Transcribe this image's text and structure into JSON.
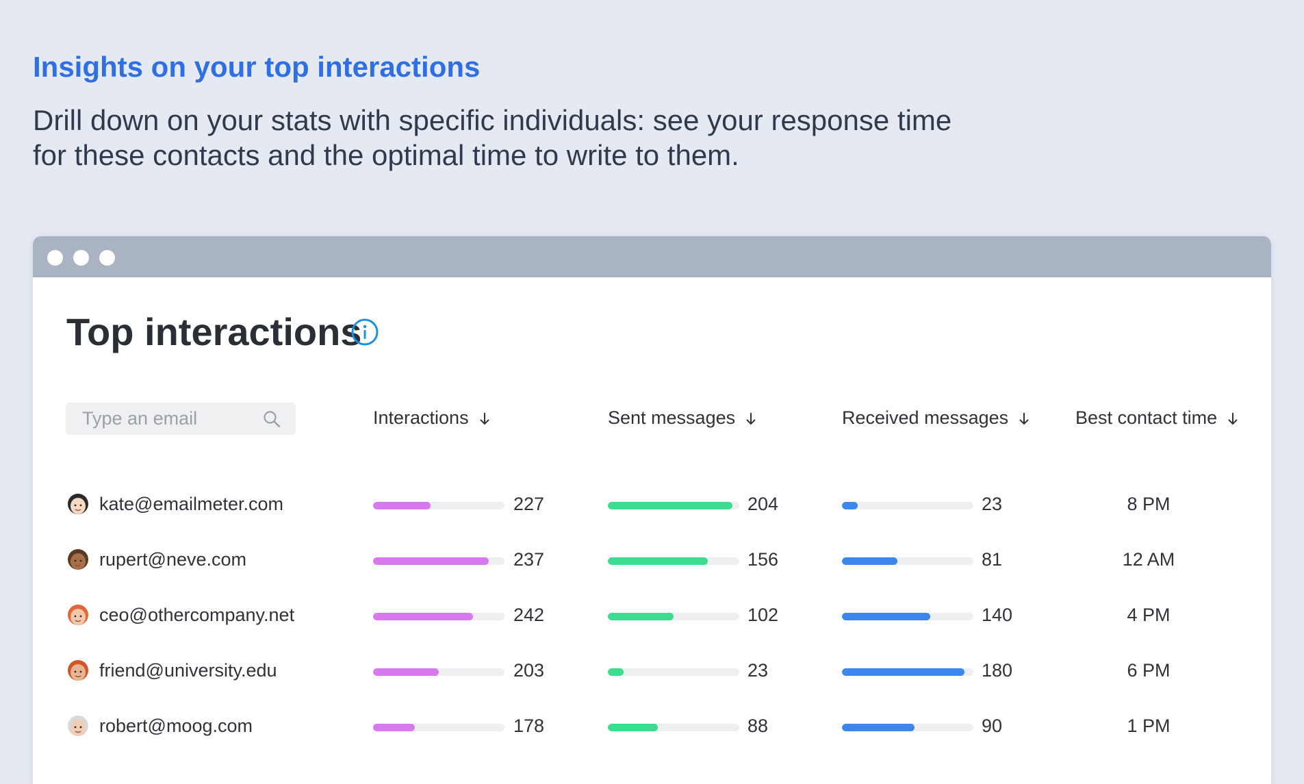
{
  "hero": {
    "title": "Insights on your top interactions",
    "subtitle": "Drill down on your stats with specific individuals: see your response time for these contacts and the optimal time to write to them."
  },
  "card": {
    "title": "Top interactions",
    "search_placeholder": "Type an email"
  },
  "columns": {
    "interactions": "Interactions",
    "sent": "Sent messages",
    "received": "Received messages",
    "best_time": "Best contact time"
  },
  "colors": {
    "interactions": "#d979f0",
    "sent": "#3ddc8e",
    "received": "#3d86ee",
    "accent": "#2f6fe3",
    "info": "#1a8fe3"
  },
  "rows": [
    {
      "email": "kate@emailmeter.com",
      "avatar": "woman-avatar-icon",
      "interactions": "227",
      "interactions_fill": 0.44,
      "sent": "204",
      "sent_fill": 0.95,
      "received": "23",
      "received_fill": 0.12,
      "best_time": "8 PM"
    },
    {
      "email": "rupert@neve.com",
      "avatar": "bearded-man-avatar-icon",
      "interactions": "237",
      "interactions_fill": 0.88,
      "sent": "156",
      "sent_fill": 0.76,
      "received": "81",
      "received_fill": 0.42,
      "best_time": "12 AM"
    },
    {
      "email": "ceo@othercompany.net",
      "avatar": "red-hair-woman-avatar-icon",
      "interactions": "242",
      "interactions_fill": 0.76,
      "sent": "102",
      "sent_fill": 0.5,
      "received": "140",
      "received_fill": 0.67,
      "best_time": "4 PM"
    },
    {
      "email": "friend@university.edu",
      "avatar": "red-hair-man-avatar-icon",
      "interactions": "203",
      "interactions_fill": 0.5,
      "sent": "23",
      "sent_fill": 0.12,
      "received": "180",
      "received_fill": 0.93,
      "best_time": "6 PM"
    },
    {
      "email": "robert@moog.com",
      "avatar": "older-man-avatar-icon",
      "interactions": "178",
      "interactions_fill": 0.32,
      "sent": "88",
      "sent_fill": 0.38,
      "received": "90",
      "received_fill": 0.55,
      "best_time": "1 PM"
    }
  ]
}
